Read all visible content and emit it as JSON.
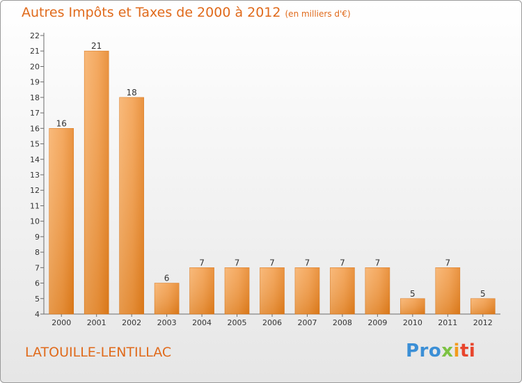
{
  "chart_data": {
    "type": "bar",
    "title": "Autres Impôts et Taxes de 2000 à 2012",
    "subtitle": "(en milliers d'€)",
    "categories": [
      "2000",
      "2001",
      "2002",
      "2003",
      "2004",
      "2005",
      "2006",
      "2007",
      "2008",
      "2009",
      "2010",
      "2011",
      "2012"
    ],
    "values": [
      16,
      21,
      18,
      6,
      7,
      7,
      7,
      7,
      7,
      7,
      5,
      7,
      5
    ],
    "ylim": [
      4,
      22
    ],
    "yticks": [
      4,
      5,
      6,
      7,
      8,
      9,
      10,
      11,
      12,
      13,
      14,
      15,
      16,
      17,
      18,
      19,
      20,
      21,
      22
    ],
    "grid": false,
    "bar_color": "#f08c2e"
  },
  "footer": {
    "place": "LATOUILLE-LENTILLAC",
    "logo": [
      "Pro",
      "x",
      "i",
      "ti"
    ]
  }
}
